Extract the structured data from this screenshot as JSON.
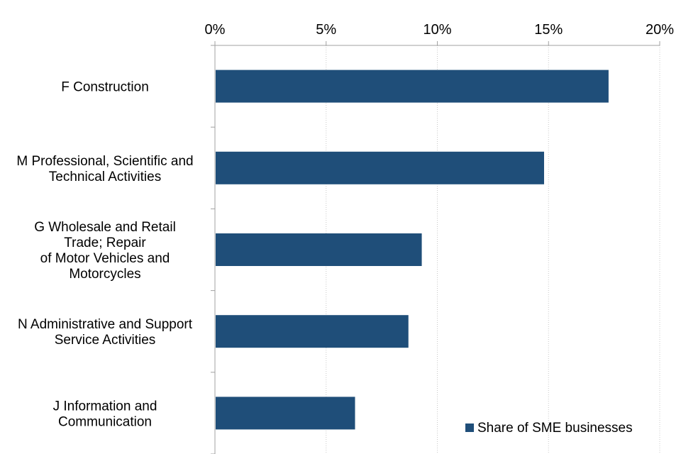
{
  "chart_data": {
    "type": "bar",
    "orientation": "horizontal",
    "title": "",
    "xlabel": "",
    "ylabel": "",
    "xlim": [
      0,
      20
    ],
    "x_ticks": [
      0,
      5,
      10,
      15,
      20
    ],
    "x_tick_labels": [
      "0%",
      "5%",
      "10%",
      "15%",
      "20%"
    ],
    "x_axis_position": "top",
    "grid": true,
    "legend_position": "bottom-right",
    "categories": [
      "F Construction",
      "M Professional, Scientific and Technical Activities",
      "G Wholesale and Retail Trade; Repair of Motor Vehicles and Motorcycles",
      "N Administrative and Support Service Activities",
      "J Information and Communication"
    ],
    "category_lines": [
      [
        "F Construction"
      ],
      [
        "M Professional, Scientific and",
        "Technical Activities"
      ],
      [
        "G Wholesale and Retail",
        "Trade; Repair",
        "of Motor Vehicles and",
        "Motorcycles"
      ],
      [
        "N Administrative and Support",
        "Service Activities"
      ],
      [
        "J Information and",
        "Communication"
      ]
    ],
    "series": [
      {
        "name": "Share of SME businesses",
        "color": "#1f4e79",
        "values": [
          17.7,
          14.8,
          9.3,
          8.7,
          6.3
        ]
      }
    ]
  }
}
